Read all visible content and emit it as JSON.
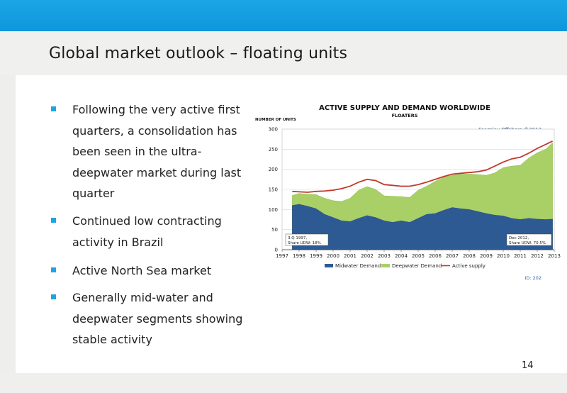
{
  "slide": {
    "title": "Global market outlook – floating units",
    "page_number": "14",
    "bullets": [
      "Following the very active first quarters, a consolidation has been seen in the ultra-deepwater market during last quarter",
      "Continued low contracting activity in Brazil",
      "Active North Sea market",
      "Generally mid-water and deepwater segments showing stable activity"
    ]
  },
  "colors": {
    "header": "#1aa6e6",
    "bullet": "#1aa6e6",
    "midwater": "#2e5a94",
    "deepwater": "#a9d067",
    "active_supply": "#c0392b"
  },
  "chart_data": {
    "type": "area",
    "title": "ACTIVE SUPPLY AND DEMAND WORLDWIDE",
    "subtitle": "FLOATERS",
    "ylabel": "NUMBER OF UNITS",
    "watermark": "Fearnley Offshore ©2013",
    "footnote": "ID: 202",
    "annotation_left": [
      "3.Q 1997,",
      "Share UDW: 18%"
    ],
    "annotation_right": [
      "Dec 2012,",
      "Share UDW: 70.5%"
    ],
    "ylim": [
      0,
      300
    ],
    "yticks": [
      0,
      50,
      100,
      150,
      200,
      250,
      300
    ],
    "x_tick_labels": [
      "1997",
      "1998",
      "1999",
      "2000",
      "2001",
      "2002",
      "2003",
      "2004",
      "2005",
      "2006",
      "2007",
      "2008",
      "2009",
      "2010",
      "2011",
      "2012",
      "2013"
    ],
    "x_range": [
      1997,
      2013
    ],
    "x": [
      1997.6,
      1998.0,
      1998.5,
      1999.0,
      1999.5,
      2000.0,
      2000.5,
      2001.0,
      2001.5,
      2002.0,
      2002.5,
      2003.0,
      2003.5,
      2004.0,
      2004.5,
      2005.0,
      2005.5,
      2006.0,
      2006.5,
      2007.0,
      2007.5,
      2008.0,
      2008.5,
      2009.0,
      2009.5,
      2010.0,
      2010.5,
      2011.0,
      2011.5,
      2012.0,
      2012.5,
      2012.9
    ],
    "legend": [
      "Midwater Demand",
      "Deepwater Demand",
      "Active supply"
    ],
    "series": [
      {
        "name": "Midwater Demand",
        "values": [
          110,
          113,
          108,
          102,
          88,
          80,
          72,
          70,
          78,
          85,
          80,
          72,
          68,
          72,
          68,
          78,
          88,
          90,
          98,
          105,
          102,
          100,
          95,
          90,
          86,
          84,
          78,
          75,
          78,
          76,
          75,
          76
        ]
      },
      {
        "name": "Deepwater Demand",
        "values": [
          25,
          27,
          30,
          35,
          40,
          42,
          48,
          58,
          70,
          72,
          70,
          62,
          65,
          60,
          62,
          70,
          70,
          80,
          82,
          80,
          86,
          88,
          92,
          95,
          105,
          120,
          130,
          135,
          150,
          165,
          175,
          190
        ]
      },
      {
        "name": "Active supply",
        "values": [
          145,
          144,
          143,
          145,
          146,
          148,
          152,
          158,
          168,
          175,
          172,
          162,
          160,
          158,
          158,
          162,
          168,
          175,
          182,
          188,
          190,
          192,
          194,
          198,
          208,
          218,
          226,
          230,
          240,
          252,
          262,
          270
        ]
      }
    ]
  }
}
